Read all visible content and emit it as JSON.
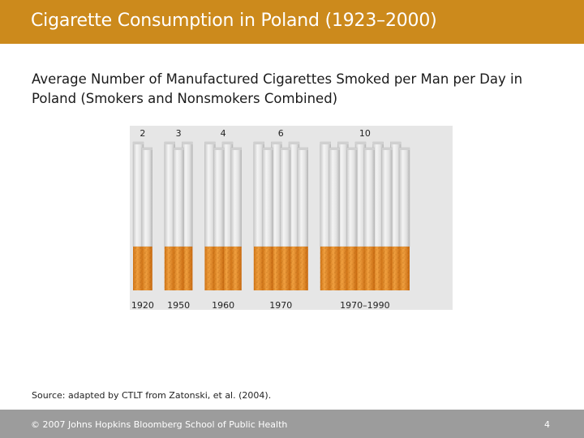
{
  "slide": {
    "title": "Cigarette Consumption in Poland (1923–2000)",
    "source": "Source: adapted by CTLT from Zatonski, et al. (2004).",
    "copyright": "© 2007 Johns Hopkins Bloomberg School of Public Health",
    "page_number": "4"
  },
  "chart_data": {
    "type": "bar",
    "title": "",
    "subtitle": "Average Number of Manufactured Cigarettes Smoked per Man per Day in Poland (Smokers and Nonsmokers Combined)",
    "xlabel": "",
    "ylabel": "",
    "categories": [
      "1920",
      "1950",
      "1960",
      "1970",
      "1970–1990"
    ],
    "values": [
      2,
      3,
      4,
      6,
      10
    ],
    "value_labels": [
      "2",
      "3",
      "4",
      "6",
      "10"
    ],
    "colors": {
      "paper": "#e4e4e4",
      "filter": "#e8902a",
      "speckle": "#b86410",
      "title_bar": "#cc8a1c",
      "footer": "#9c9c9c"
    }
  }
}
